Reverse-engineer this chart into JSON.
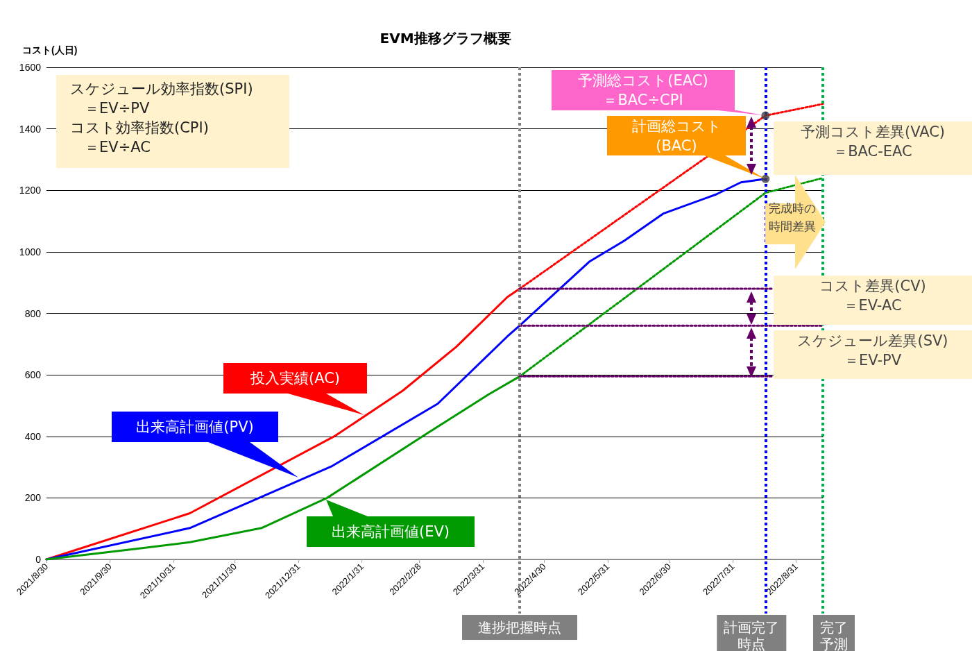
{
  "chart_data": {
    "type": "line",
    "title": "EVM推移グラフ概要",
    "ylabel": "コスト(人日)",
    "xlim": [
      "2021-08-30",
      "2022-09-13"
    ],
    "xticks": [
      {
        "value": "2021-08-30",
        "label": "2021/8/30"
      },
      {
        "value": "2021-09-30",
        "label": "2021/9/30"
      },
      {
        "value": "2021-10-31",
        "label": "2021/10/31"
      },
      {
        "value": "2021-11-30",
        "label": "2021/11/30"
      },
      {
        "value": "2021-12-31",
        "label": "2021/12/31"
      },
      {
        "value": "2022-01-31",
        "label": "2022/1/31"
      },
      {
        "value": "2022-02-28",
        "label": "2022/2/28"
      },
      {
        "value": "2022-03-31",
        "label": "2022/3/31"
      },
      {
        "value": "2022-04-30",
        "label": "2022/4/30"
      },
      {
        "value": "2022-05-31",
        "label": "2022/5/31"
      },
      {
        "value": "2022-06-30",
        "label": "2022/6/30"
      },
      {
        "value": "2022-07-31",
        "label": "2022/7/31"
      },
      {
        "value": "2022-08-31",
        "label": "2022/8/31"
      }
    ],
    "ylim": [
      0,
      1600
    ],
    "yticks": [
      0,
      200,
      400,
      600,
      800,
      1000,
      1200,
      1400,
      1600
    ],
    "grid": "y",
    "legend": false,
    "marker": "none",
    "series": [
      {
        "name": "投入実績(AC)",
        "color": "#ff0000",
        "line_style": "solid",
        "x": [
          "2021-08-30",
          "2021-11-08",
          "2022-01-18",
          "2022-02-20",
          "2022-03-18",
          "2022-04-12",
          "2022-04-18"
        ],
        "values": [
          0,
          150,
          402,
          549,
          691,
          853,
          880
        ]
      },
      {
        "color": "#ff0000",
        "line_style": "dotted",
        "x": [
          "2022-04-18",
          "2022-08-16",
          "2022-09-13"
        ],
        "values": [
          880,
          1443,
          1481
        ]
      },
      {
        "name": "出来高計画値(PV)",
        "color": "#0000ff",
        "line_style": "solid",
        "x": [
          "2021-08-30",
          "2021-11-08",
          "2022-01-16",
          "2022-03-09",
          "2022-04-12",
          "2022-04-18",
          "2022-05-05",
          "2022-05-22",
          "2022-06-08",
          "2022-06-27",
          "2022-07-23",
          "2022-08-04",
          "2022-08-16"
        ],
        "values": [
          0,
          102,
          302,
          506,
          725,
          760,
          864,
          968,
          1036,
          1124,
          1187,
          1226,
          1237
        ]
      },
      {
        "name": "出来高計画値(EV)",
        "color": "#009900",
        "line_style": "solid",
        "x": [
          "2021-08-30",
          "2021-10-15",
          "2021-11-08",
          "2021-12-13",
          "2022-01-14",
          "2022-03-03",
          "2022-04-03",
          "2022-04-18"
        ],
        "values": [
          0,
          36,
          56,
          102,
          200,
          406,
          537,
          595
        ]
      },
      {
        "color": "#009900",
        "line_style": "dotted",
        "x": [
          "2022-04-18",
          "2022-08-16",
          "2022-09-13"
        ],
        "values": [
          595,
          1192,
          1240
        ]
      },
      {
        "color": "#660066",
        "line_style": "dotted",
        "x": [
          "2022-04-18",
          "2022-08-19"
        ],
        "values": [
          880,
          880
        ]
      },
      {
        "color": "#660066",
        "line_style": "dotted",
        "x": [
          "2022-04-18",
          "2022-09-13"
        ],
        "values": [
          760,
          760
        ]
      },
      {
        "color": "#660066",
        "line_style": "dotted",
        "x": [
          "2022-04-18",
          "2022-08-19"
        ],
        "values": [
          595,
          595
        ]
      },
      {
        "type": "scatter",
        "marker": "circle",
        "color": "#404040",
        "x": [
          "2022-08-16",
          "2022-08-16"
        ],
        "values": [
          1443,
          1237
        ]
      }
    ],
    "ref_lines": [
      {
        "axis": "x",
        "value": "2022-04-18",
        "label": "進捗把握時点",
        "color": "#808080",
        "line_style": "dotted"
      },
      {
        "axis": "x",
        "value": "2022-08-16",
        "label": "計画完了時点",
        "color": "#0000ff",
        "line_style": "dotted"
      },
      {
        "axis": "x",
        "value": "2022-09-13",
        "label": "完了予測",
        "color": "#00b050",
        "line_style": "dotted"
      }
    ],
    "annotations": [
      "スケジュール効率指数(SPI)\n　＝EV÷PV\nコスト効率指数(CPI)\n　＝EV÷AC",
      {
        "text": "予測総コスト(EAC)\n＝BAC÷CPI",
        "x": "2022-08-16",
        "y": 1443
      },
      {
        "text": "計画総コスト\n(BAC)",
        "x": "2022-08-16",
        "y": 1237
      },
      "予測コスト差異(VAC)\n＝BAC-EAC",
      "完成時の時間差異",
      "コスト差異(CV)\n＝EV-AC",
      "スケジュール差異(SV)\n＝EV-PV"
    ]
  }
}
